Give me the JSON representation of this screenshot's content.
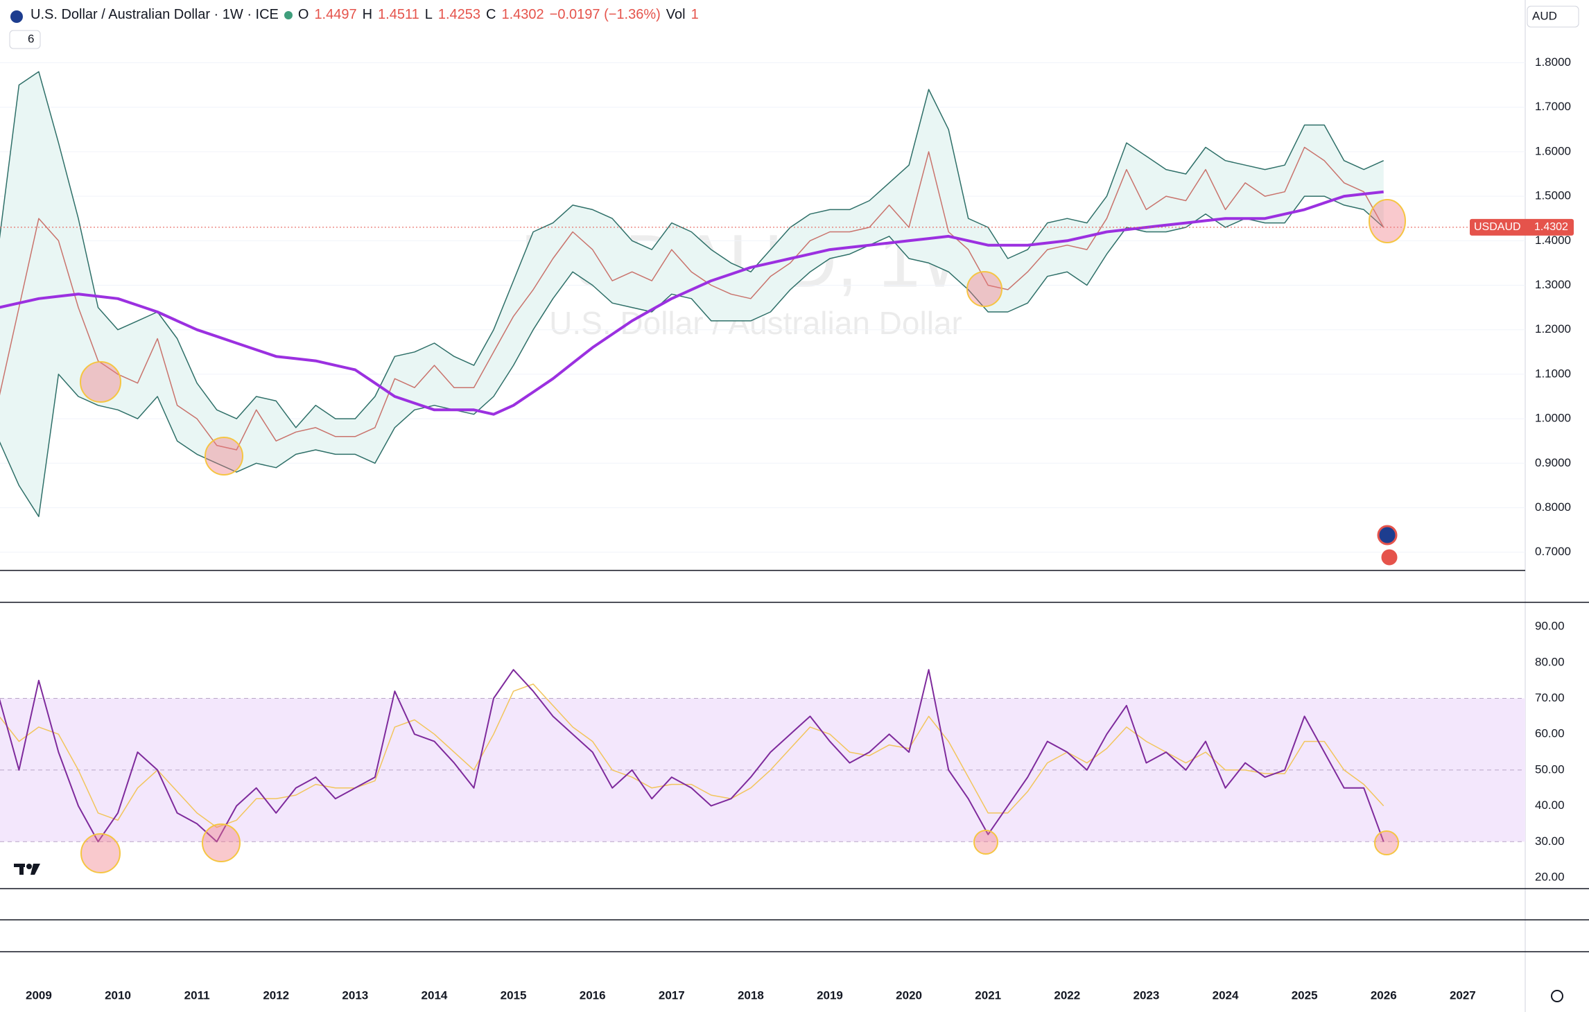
{
  "header": {
    "title": "U.S. Dollar / Australian Dollar · 1W · ICE",
    "o_label": "O",
    "open": 1.4497,
    "h_label": "H",
    "high": 1.4511,
    "l_label": "L",
    "low": 1.4253,
    "c_label": "C",
    "close": 1.4302,
    "change": "−0.0197 (−1.36%)",
    "vol_label": "Vol",
    "vol": 1,
    "indicators": 6,
    "currency": "AUD",
    "watermark": "USDAUD, 1W",
    "watermark_sub": "U.S. Dollar / Australian Dollar"
  },
  "chart_data": [
    {
      "type": "line",
      "xlim": [
        2008.51,
        2027.79
      ],
      "ylim": [
        0.659,
        1.941
      ],
      "yticks": [
        {
          "value": 0.7,
          "label": "0.7000"
        },
        {
          "value": 0.8,
          "label": "0.8000"
        },
        {
          "value": 0.9,
          "label": "0.9000"
        },
        {
          "value": 1.0,
          "label": "1.0000"
        },
        {
          "value": 1.1,
          "label": "1.1000"
        },
        {
          "value": 1.2,
          "label": "1.2000"
        },
        {
          "value": 1.3,
          "label": "1.3000"
        },
        {
          "value": 1.4,
          "label": "1.4000"
        },
        {
          "value": 1.5,
          "label": "1.5000"
        },
        {
          "value": 1.6,
          "label": "1.6000"
        },
        {
          "value": 1.7,
          "label": "1.7000"
        },
        {
          "value": 1.8,
          "label": "1.8000"
        }
      ],
      "grid": true,
      "price_line": {
        "label": "USDAUD",
        "value": 1.4302,
        "color": "#e5534b"
      },
      "band_fill": "#e9f6f4",
      "x": [
        2008.5,
        2008.75,
        2009,
        2009.25,
        2009.5,
        2009.75,
        2010,
        2010.25,
        2010.5,
        2010.75,
        2011,
        2011.25,
        2011.5,
        2011.75,
        2012,
        2012.25,
        2012.5,
        2012.75,
        2013,
        2013.25,
        2013.5,
        2013.75,
        2014,
        2014.25,
        2014.5,
        2014.75,
        2015,
        2015.25,
        2015.5,
        2015.75,
        2016,
        2016.25,
        2016.5,
        2016.75,
        2017,
        2017.25,
        2017.5,
        2017.75,
        2018,
        2018.25,
        2018.5,
        2018.75,
        2019,
        2019.25,
        2019.5,
        2019.75,
        2020,
        2020.25,
        2020.5,
        2020.75,
        2021,
        2021.25,
        2021.5,
        2021.75,
        2022,
        2022.25,
        2022.5,
        2022.75,
        2023,
        2023.25,
        2023.5,
        2023.75,
        2024,
        2024.25,
        2024.5,
        2024.75,
        2025,
        2025.25,
        2025.5,
        2025.75,
        2026
      ],
      "series": [
        {
          "color": "#2e6f68",
          "width": 1.5,
          "values": [
            1.4,
            1.75,
            1.78,
            1.62,
            1.45,
            1.25,
            1.2,
            1.22,
            1.24,
            1.18,
            1.08,
            1.02,
            1.0,
            1.05,
            1.04,
            0.98,
            1.03,
            1.0,
            1.0,
            1.05,
            1.14,
            1.15,
            1.17,
            1.14,
            1.12,
            1.2,
            1.31,
            1.42,
            1.44,
            1.48,
            1.47,
            1.45,
            1.4,
            1.38,
            1.44,
            1.42,
            1.38,
            1.35,
            1.33,
            1.38,
            1.43,
            1.46,
            1.47,
            1.47,
            1.49,
            1.53,
            1.57,
            1.74,
            1.65,
            1.45,
            1.43,
            1.36,
            1.38,
            1.44,
            1.45,
            1.44,
            1.5,
            1.62,
            1.59,
            1.56,
            1.55,
            1.61,
            1.58,
            1.57,
            1.56,
            1.57,
            1.66,
            1.66,
            1.58,
            1.56,
            1.58
          ]
        },
        {
          "color": "#2e6f68",
          "width": 1.5,
          "values": [
            0.95,
            0.85,
            0.78,
            1.1,
            1.05,
            1.03,
            1.02,
            1.0,
            1.05,
            0.95,
            0.92,
            0.9,
            0.88,
            0.9,
            0.89,
            0.92,
            0.93,
            0.92,
            0.92,
            0.9,
            0.98,
            1.02,
            1.03,
            1.02,
            1.01,
            1.05,
            1.12,
            1.2,
            1.27,
            1.33,
            1.3,
            1.26,
            1.25,
            1.24,
            1.28,
            1.27,
            1.22,
            1.22,
            1.22,
            1.24,
            1.29,
            1.33,
            1.36,
            1.37,
            1.39,
            1.41,
            1.36,
            1.35,
            1.33,
            1.29,
            1.24,
            1.24,
            1.26,
            1.32,
            1.33,
            1.3,
            1.37,
            1.43,
            1.42,
            1.42,
            1.43,
            1.46,
            1.43,
            1.45,
            1.44,
            1.44,
            1.5,
            1.5,
            1.48,
            1.47,
            1.43
          ]
        },
        {
          "color": "#c9736c",
          "width": 1.5,
          "values": [
            1.05,
            1.25,
            1.45,
            1.4,
            1.25,
            1.13,
            1.1,
            1.08,
            1.18,
            1.03,
            1.0,
            0.94,
            0.93,
            1.02,
            0.95,
            0.97,
            0.98,
            0.96,
            0.96,
            0.98,
            1.09,
            1.07,
            1.12,
            1.07,
            1.07,
            1.15,
            1.23,
            1.29,
            1.36,
            1.42,
            1.38,
            1.31,
            1.33,
            1.31,
            1.38,
            1.33,
            1.3,
            1.28,
            1.27,
            1.32,
            1.35,
            1.4,
            1.42,
            1.42,
            1.43,
            1.48,
            1.43,
            1.6,
            1.42,
            1.38,
            1.3,
            1.29,
            1.33,
            1.38,
            1.39,
            1.38,
            1.45,
            1.56,
            1.47,
            1.5,
            1.49,
            1.56,
            1.47,
            1.53,
            1.5,
            1.51,
            1.61,
            1.58,
            1.53,
            1.51,
            1.43
          ]
        },
        {
          "color": "#9b30e0",
          "width": 4,
          "values": [
            1.25,
            1.26,
            1.27,
            1.275,
            1.28,
            1.275,
            1.27,
            1.255,
            1.24,
            1.22,
            1.2,
            1.185,
            1.17,
            1.155,
            1.14,
            1.135,
            1.13,
            1.12,
            1.11,
            1.08,
            1.05,
            1.035,
            1.02,
            1.02,
            1.02,
            1.01,
            1.03,
            1.06,
            1.09,
            1.125,
            1.16,
            1.19,
            1.22,
            1.245,
            1.27,
            1.29,
            1.31,
            1.325,
            1.34,
            1.35,
            1.36,
            1.37,
            1.38,
            1.385,
            1.39,
            1.395,
            1.4,
            1.405,
            1.41,
            1.4,
            1.39,
            1.39,
            1.39,
            1.395,
            1.4,
            1.41,
            1.42,
            1.425,
            1.43,
            1.435,
            1.44,
            1.445,
            1.45,
            1.45,
            1.45,
            1.46,
            1.47,
            1.485,
            1.5,
            1.505,
            1.51
          ]
        }
      ]
    },
    {
      "type": "line",
      "xlim": [
        2008.51,
        2027.79
      ],
      "ylim": [
        16.9,
        96.8
      ],
      "yticks": [
        {
          "value": 20,
          "label": "20.00"
        },
        {
          "value": 30,
          "label": "30.00"
        },
        {
          "value": 40,
          "label": "40.00"
        },
        {
          "value": 50,
          "label": "50.00"
        },
        {
          "value": 60,
          "label": "60.00"
        },
        {
          "value": 70,
          "label": "70.00"
        },
        {
          "value": 80,
          "label": "80.00"
        },
        {
          "value": 90,
          "label": "90.00"
        }
      ],
      "xticks": [
        2009,
        2010,
        2011,
        2012,
        2013,
        2014,
        2015,
        2016,
        2017,
        2018,
        2019,
        2020,
        2021,
        2022,
        2023,
        2024,
        2025,
        2026,
        2027
      ],
      "band": [
        30,
        70
      ],
      "band_color": "#f3e7fc",
      "midline": 50,
      "x": [
        2008.5,
        2008.75,
        2009,
        2009.25,
        2009.5,
        2009.75,
        2010,
        2010.25,
        2010.5,
        2010.75,
        2011,
        2011.25,
        2011.5,
        2011.75,
        2012,
        2012.25,
        2012.5,
        2012.75,
        2013,
        2013.25,
        2013.5,
        2013.75,
        2014,
        2014.25,
        2014.5,
        2014.75,
        2015,
        2015.25,
        2015.5,
        2015.75,
        2016,
        2016.25,
        2016.5,
        2016.75,
        2017,
        2017.25,
        2017.5,
        2017.75,
        2018,
        2018.25,
        2018.5,
        2018.75,
        2019,
        2019.25,
        2019.5,
        2019.75,
        2020,
        2020.25,
        2020.5,
        2020.75,
        2021,
        2021.25,
        2021.5,
        2021.75,
        2022,
        2022.25,
        2022.5,
        2022.75,
        2023,
        2023.25,
        2023.5,
        2023.75,
        2024,
        2024.25,
        2024.5,
        2024.75,
        2025,
        2025.25,
        2025.5,
        2025.75,
        2026
      ],
      "series": [
        {
          "color": "#f2c55c",
          "width": 1.5,
          "values": [
            65,
            58,
            62,
            60,
            50,
            38,
            36,
            45,
            50,
            44,
            38,
            34,
            36,
            42,
            42,
            43,
            46,
            45,
            45,
            47,
            62,
            64,
            60,
            55,
            50,
            60,
            72,
            74,
            68,
            62,
            58,
            50,
            48,
            45,
            46,
            46,
            43,
            42,
            45,
            50,
            56,
            62,
            60,
            55,
            54,
            57,
            56,
            65,
            58,
            48,
            38,
            38,
            44,
            52,
            55,
            52,
            56,
            62,
            58,
            55,
            52,
            55,
            50,
            50,
            49,
            49,
            58,
            58,
            50,
            46,
            40
          ]
        },
        {
          "color": "#7e2a9c",
          "width": 2,
          "values": [
            70,
            50,
            75,
            55,
            40,
            30,
            38,
            55,
            50,
            38,
            35,
            30,
            40,
            45,
            38,
            45,
            48,
            42,
            45,
            48,
            72,
            60,
            58,
            52,
            45,
            70,
            78,
            72,
            65,
            60,
            55,
            45,
            50,
            42,
            48,
            45,
            40,
            42,
            48,
            55,
            60,
            65,
            58,
            52,
            55,
            60,
            55,
            78,
            50,
            42,
            32,
            40,
            48,
            58,
            55,
            50,
            60,
            68,
            52,
            55,
            50,
            58,
            45,
            52,
            48,
            50,
            65,
            55,
            45,
            45,
            30
          ]
        }
      ]
    }
  ]
}
